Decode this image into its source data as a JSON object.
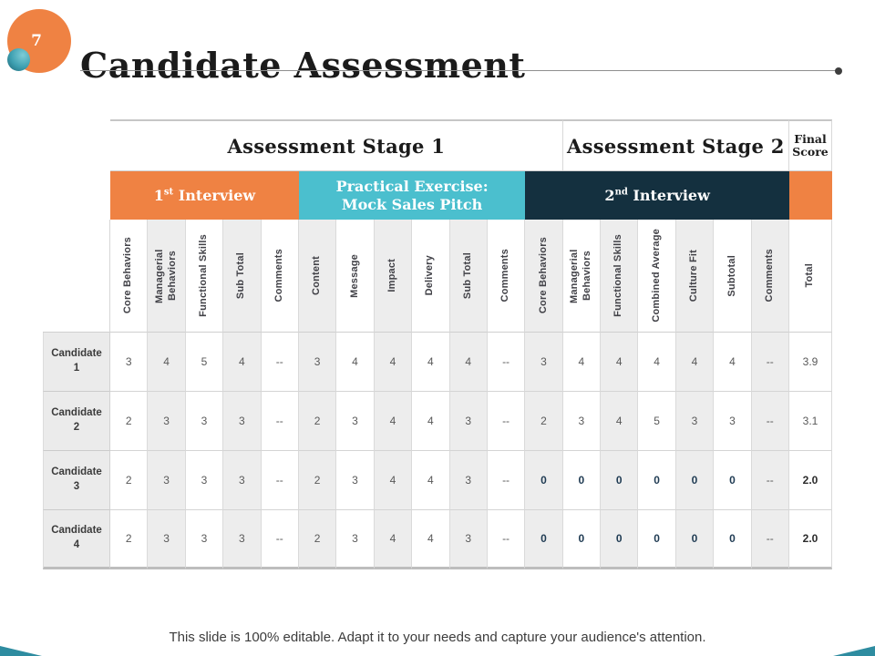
{
  "slide": {
    "page_number": "7",
    "title": "Candidate Assessment",
    "footer": "This slide is 100% editable. Adapt it to your needs and capture your audience's attention."
  },
  "colors": {
    "orange": "#EF8243",
    "teal": "#4BBFCE",
    "navy": "#14303F",
    "zero_emphasis": "#1F3B53"
  },
  "table": {
    "stage_headers": [
      {
        "label": "Assessment Stage 1",
        "span": 12
      },
      {
        "label": "Assessment Stage 2",
        "span": 6
      },
      {
        "label": "Final Score",
        "span": 1
      }
    ],
    "group_headers": [
      {
        "prefix": "1",
        "sup": "st",
        "suffix": " Interview",
        "span": 5,
        "bg": "#EF8243"
      },
      {
        "prefix": "",
        "sup": "",
        "suffix": "Practical Exercise: Mock Sales Pitch",
        "span": 6,
        "bg": "#4BBFCE"
      },
      {
        "prefix": "2",
        "sup": "nd",
        "suffix": " Interview",
        "span": 7,
        "bg": "#14303F"
      },
      {
        "prefix": "",
        "sup": "",
        "suffix": "",
        "span": 1,
        "bg": "#EF8243"
      }
    ],
    "columns": [
      "Core Behaviors",
      "Managerial Behaviors",
      "Functional Skills",
      "Sub Total",
      "Comments",
      "Content",
      "Message",
      "Impact",
      "Delivery",
      "Sub Total",
      "Comments",
      "Core Behaviors",
      "Managerial Behaviors",
      "Functional Skills",
      "Combined Average",
      "Culture Fit",
      "Subtotal",
      "Comments",
      "Total"
    ],
    "rows": [
      {
        "label": "Candidate 1",
        "stage2_bold": false,
        "values": [
          "3",
          "4",
          "5",
          "4",
          "--",
          "3",
          "4",
          "4",
          "4",
          "4",
          "--",
          "3",
          "4",
          "4",
          "4",
          "4",
          "4",
          "--",
          "3.9"
        ]
      },
      {
        "label": "Candidate 2",
        "stage2_bold": false,
        "values": [
          "2",
          "3",
          "3",
          "3",
          "--",
          "2",
          "3",
          "4",
          "4",
          "3",
          "--",
          "2",
          "3",
          "4",
          "5",
          "3",
          "3",
          "--",
          "3.1"
        ]
      },
      {
        "label": "Candidate 3",
        "stage2_bold": true,
        "values": [
          "2",
          "3",
          "3",
          "3",
          "--",
          "2",
          "3",
          "4",
          "4",
          "3",
          "--",
          "0",
          "0",
          "0",
          "0",
          "0",
          "0",
          "--",
          "2.0"
        ]
      },
      {
        "label": "Candidate 4",
        "stage2_bold": true,
        "values": [
          "2",
          "3",
          "3",
          "3",
          "--",
          "2",
          "3",
          "4",
          "4",
          "3",
          "--",
          "0",
          "0",
          "0",
          "0",
          "0",
          "0",
          "--",
          "2.0"
        ]
      }
    ]
  }
}
